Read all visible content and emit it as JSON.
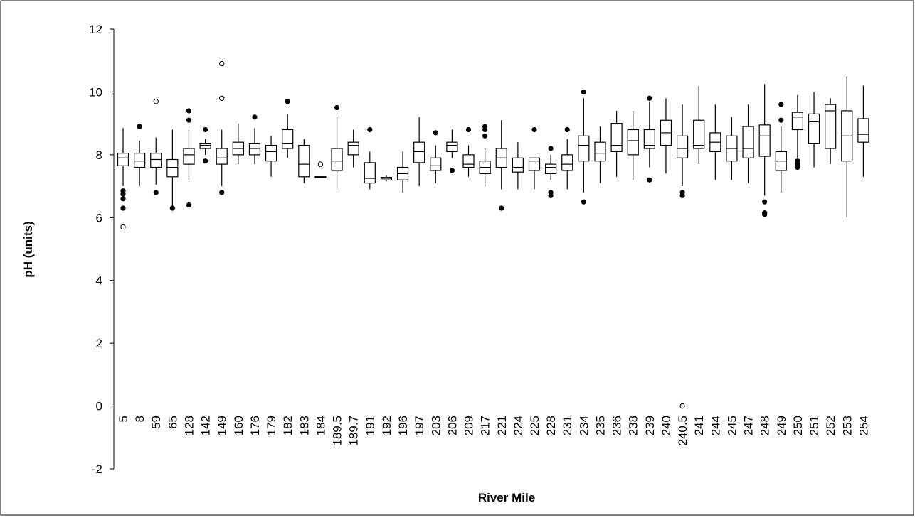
{
  "chart_data": {
    "type": "boxplot",
    "xlabel": "River Mile",
    "ylabel": "pH (units)",
    "ylim": [
      -2,
      12
    ],
    "yticks": [
      -2,
      0,
      2,
      4,
      6,
      8,
      10,
      12
    ],
    "categories": [
      "5",
      "8",
      "59",
      "65",
      "128",
      "142",
      "149",
      "160",
      "176",
      "179",
      "182",
      "183",
      "184",
      "189.5",
      "189.7",
      "191",
      "192",
      "196",
      "197",
      "203",
      "206",
      "209",
      "217",
      "221",
      "224",
      "225",
      "228",
      "231",
      "234",
      "235",
      "236",
      "238",
      "239",
      "240",
      "240.5",
      "241",
      "244",
      "245",
      "247",
      "248",
      "249",
      "250",
      "251",
      "252",
      "253",
      "254"
    ],
    "boxes": [
      {
        "q1": 7.65,
        "median": 7.9,
        "q3": 8.05,
        "wlo": 7.0,
        "whi": 8.85,
        "outliers": [
          6.85,
          6.75,
          6.6,
          6.3
        ],
        "extremes": [
          5.7
        ]
      },
      {
        "q1": 7.6,
        "median": 7.8,
        "q3": 8.05,
        "wlo": 7.0,
        "whi": 8.45,
        "outliers": [
          8.9
        ],
        "extremes": []
      },
      {
        "q1": 7.6,
        "median": 7.85,
        "q3": 8.05,
        "wlo": 7.05,
        "whi": 8.55,
        "outliers": [
          6.8
        ],
        "extremes": [
          9.7
        ]
      },
      {
        "q1": 7.3,
        "median": 7.6,
        "q3": 7.85,
        "wlo": 6.3,
        "whi": 8.8,
        "outliers": [
          6.3
        ],
        "extremes": []
      },
      {
        "q1": 7.7,
        "median": 8.0,
        "q3": 8.2,
        "wlo": 7.2,
        "whi": 8.8,
        "outliers": [
          9.4,
          9.1,
          6.4
        ],
        "extremes": []
      },
      {
        "q1": 8.2,
        "median": 8.3,
        "q3": 8.35,
        "wlo": 8.0,
        "whi": 8.5,
        "outliers": [
          8.8,
          7.8
        ],
        "extremes": []
      },
      {
        "q1": 7.7,
        "median": 7.9,
        "q3": 8.2,
        "wlo": 7.0,
        "whi": 8.8,
        "outliers": [
          6.8
        ],
        "extremes": [
          10.9,
          9.8
        ]
      },
      {
        "q1": 8.0,
        "median": 8.2,
        "q3": 8.4,
        "wlo": 7.7,
        "whi": 9.0,
        "outliers": [],
        "extremes": []
      },
      {
        "q1": 8.0,
        "median": 8.2,
        "q3": 8.35,
        "wlo": 7.7,
        "whi": 8.85,
        "outliers": [
          9.2
        ],
        "extremes": []
      },
      {
        "q1": 7.8,
        "median": 8.1,
        "q3": 8.3,
        "wlo": 7.3,
        "whi": 8.6,
        "outliers": [],
        "extremes": []
      },
      {
        "q1": 8.2,
        "median": 8.35,
        "q3": 8.8,
        "wlo": 7.9,
        "whi": 9.3,
        "outliers": [
          9.7
        ],
        "extremes": []
      },
      {
        "q1": 7.3,
        "median": 7.7,
        "q3": 8.3,
        "wlo": 7.1,
        "whi": 8.5,
        "outliers": [],
        "extremes": []
      },
      {
        "q1": 7.3,
        "median": 7.3,
        "q3": 7.3,
        "wlo": 7.3,
        "whi": 7.3,
        "outliers": [],
        "extremes": [
          7.7
        ]
      },
      {
        "q1": 7.5,
        "median": 7.8,
        "q3": 8.2,
        "wlo": 6.9,
        "whi": 9.2,
        "outliers": [
          9.5
        ],
        "extremes": []
      },
      {
        "q1": 8.0,
        "median": 8.3,
        "q3": 8.4,
        "wlo": 7.6,
        "whi": 8.8,
        "outliers": [],
        "extremes": []
      },
      {
        "q1": 7.1,
        "median": 7.25,
        "q3": 7.75,
        "wlo": 6.9,
        "whi": 8.1,
        "outliers": [
          8.8
        ],
        "extremes": []
      },
      {
        "q1": 7.2,
        "median": 7.25,
        "q3": 7.28,
        "wlo": 7.15,
        "whi": 7.35,
        "outliers": [],
        "extremes": []
      },
      {
        "q1": 7.2,
        "median": 7.4,
        "q3": 7.6,
        "wlo": 6.8,
        "whi": 8.1,
        "outliers": [],
        "extremes": []
      },
      {
        "q1": 7.75,
        "median": 8.1,
        "q3": 8.4,
        "wlo": 7.0,
        "whi": 9.2,
        "outliers": [],
        "extremes": []
      },
      {
        "q1": 7.5,
        "median": 7.65,
        "q3": 7.9,
        "wlo": 7.1,
        "whi": 8.3,
        "outliers": [
          8.7
        ],
        "extremes": []
      },
      {
        "q1": 8.1,
        "median": 8.3,
        "q3": 8.4,
        "wlo": 7.9,
        "whi": 8.8,
        "outliers": [
          7.5
        ],
        "extremes": []
      },
      {
        "q1": 7.6,
        "median": 7.7,
        "q3": 8.0,
        "wlo": 7.3,
        "whi": 8.3,
        "outliers": [
          8.8
        ],
        "extremes": []
      },
      {
        "q1": 7.4,
        "median": 7.6,
        "q3": 7.8,
        "wlo": 7.0,
        "whi": 8.2,
        "outliers": [
          8.9,
          8.8,
          8.6
        ],
        "extremes": []
      },
      {
        "q1": 7.6,
        "median": 7.9,
        "q3": 8.2,
        "wlo": 6.9,
        "whi": 9.1,
        "outliers": [
          6.3
        ],
        "extremes": []
      },
      {
        "q1": 7.45,
        "median": 7.6,
        "q3": 7.9,
        "wlo": 6.9,
        "whi": 8.4,
        "outliers": [],
        "extremes": []
      },
      {
        "q1": 7.5,
        "median": 7.8,
        "q3": 7.9,
        "wlo": 6.9,
        "whi": 7.9,
        "outliers": [
          8.8
        ],
        "extremes": []
      },
      {
        "q1": 7.4,
        "median": 7.6,
        "q3": 7.7,
        "wlo": 7.2,
        "whi": 8.0,
        "outliers": [
          8.2,
          6.8,
          6.7
        ],
        "extremes": []
      },
      {
        "q1": 7.5,
        "median": 7.7,
        "q3": 8.0,
        "wlo": 6.9,
        "whi": 8.5,
        "outliers": [
          8.8
        ],
        "extremes": []
      },
      {
        "q1": 7.8,
        "median": 8.3,
        "q3": 8.6,
        "wlo": 6.8,
        "whi": 9.8,
        "outliers": [
          10.0,
          6.5
        ],
        "extremes": []
      },
      {
        "q1": 7.8,
        "median": 8.05,
        "q3": 8.4,
        "wlo": 7.1,
        "whi": 8.9,
        "outliers": [],
        "extremes": []
      },
      {
        "q1": 8.1,
        "median": 8.3,
        "q3": 9.0,
        "wlo": 7.3,
        "whi": 9.4,
        "outliers": [],
        "extremes": []
      },
      {
        "q1": 8.0,
        "median": 8.45,
        "q3": 8.8,
        "wlo": 7.2,
        "whi": 9.4,
        "outliers": [],
        "extremes": []
      },
      {
        "q1": 8.2,
        "median": 8.3,
        "q3": 8.8,
        "wlo": 7.6,
        "whi": 9.7,
        "outliers": [
          9.8,
          7.2
        ],
        "extremes": []
      },
      {
        "q1": 8.3,
        "median": 8.7,
        "q3": 9.1,
        "wlo": 7.4,
        "whi": 9.8,
        "outliers": [],
        "extremes": []
      },
      {
        "q1": 7.9,
        "median": 8.2,
        "q3": 8.6,
        "wlo": 7.0,
        "whi": 9.6,
        "outliers": [
          6.8,
          6.7
        ],
        "extremes": [
          0.0
        ]
      },
      {
        "q1": 8.2,
        "median": 8.3,
        "q3": 9.1,
        "wlo": 7.7,
        "whi": 10.2,
        "outliers": [],
        "extremes": []
      },
      {
        "q1": 8.1,
        "median": 8.4,
        "q3": 8.7,
        "wlo": 7.2,
        "whi": 9.6,
        "outliers": [],
        "extremes": []
      },
      {
        "q1": 7.8,
        "median": 8.2,
        "q3": 8.6,
        "wlo": 7.2,
        "whi": 9.2,
        "outliers": [],
        "extremes": []
      },
      {
        "q1": 7.9,
        "median": 8.2,
        "q3": 8.9,
        "wlo": 7.1,
        "whi": 9.6,
        "outliers": [],
        "extremes": []
      },
      {
        "q1": 7.95,
        "median": 8.6,
        "q3": 8.95,
        "wlo": 6.7,
        "whi": 10.25,
        "outliers": [
          6.5,
          6.15,
          6.1
        ],
        "extremes": []
      },
      {
        "q1": 7.5,
        "median": 7.8,
        "q3": 8.1,
        "wlo": 6.8,
        "whi": 8.9,
        "outliers": [
          9.6,
          9.1
        ],
        "extremes": []
      },
      {
        "q1": 8.8,
        "median": 9.2,
        "q3": 9.35,
        "wlo": 7.9,
        "whi": 9.9,
        "outliers": [
          7.8,
          7.7,
          7.6
        ],
        "extremes": []
      },
      {
        "q1": 8.35,
        "median": 9.05,
        "q3": 9.3,
        "wlo": 7.6,
        "whi": 10.0,
        "outliers": [],
        "extremes": []
      },
      {
        "q1": 8.2,
        "median": 9.4,
        "q3": 9.6,
        "wlo": 7.7,
        "whi": 9.8,
        "outliers": [],
        "extremes": []
      },
      {
        "q1": 7.8,
        "median": 8.6,
        "q3": 9.4,
        "wlo": 6.0,
        "whi": 10.5,
        "outliers": [],
        "extremes": []
      },
      {
        "q1": 8.4,
        "median": 8.65,
        "q3": 9.15,
        "wlo": 7.3,
        "whi": 10.2,
        "outliers": [],
        "extremes": []
      }
    ]
  }
}
